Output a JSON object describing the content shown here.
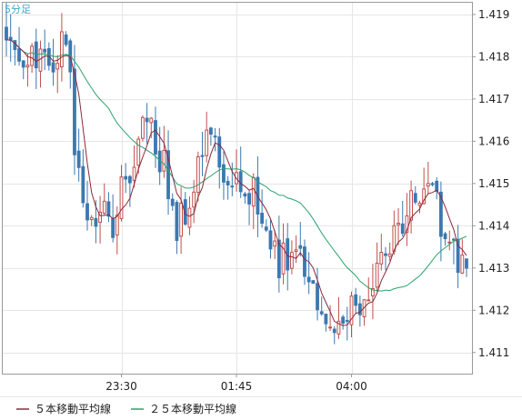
{
  "chart_data": {
    "type": "candlestick",
    "period_label": "5分足",
    "y_ticks": [
      1.411,
      1.412,
      1.413,
      1.414,
      1.415,
      1.416,
      1.417,
      1.418,
      1.419
    ],
    "ylim": [
      1.4105,
      1.4193
    ],
    "x_ticks": [
      {
        "label": "23:30",
        "index": 27
      },
      {
        "label": "01:45",
        "index": 54
      },
      {
        "label": "04:00",
        "index": 81
      }
    ],
    "candle_count": 109,
    "grid": true,
    "colors": {
      "up": "#c0504d",
      "down": "#3c78b0",
      "ma5": "#8a2a3a",
      "ma25": "#2aa36a",
      "grid": "#e6e6e6",
      "axis": "#9a9a9a"
    },
    "legend": [
      {
        "label": "５本移動平均線",
        "color": "#8a2a3a"
      },
      {
        "label": "２５本移動平均線",
        "color": "#2aa36a"
      }
    ],
    "anchors": [
      [
        0,
        1.4184
      ],
      [
        1,
        1.4185
      ],
      [
        4,
        1.4182
      ],
      [
        8,
        1.4179
      ],
      [
        10,
        1.4178
      ],
      [
        12,
        1.4182
      ],
      [
        14,
        1.4187
      ],
      [
        16,
        1.416
      ],
      [
        18,
        1.4148
      ],
      [
        20,
        1.4143
      ],
      [
        23,
        1.4142
      ],
      [
        25,
        1.4141
      ],
      [
        27,
        1.4149
      ],
      [
        29,
        1.4153
      ],
      [
        31,
        1.4158
      ],
      [
        33,
        1.4168
      ],
      [
        35,
        1.4158
      ],
      [
        37,
        1.4156
      ],
      [
        38,
        1.4146
      ],
      [
        40,
        1.4139
      ],
      [
        42,
        1.4143
      ],
      [
        44,
        1.4152
      ],
      [
        46,
        1.4158
      ],
      [
        48,
        1.416
      ],
      [
        50,
        1.4155
      ],
      [
        52,
        1.4153
      ],
      [
        54,
        1.4153
      ],
      [
        56,
        1.415
      ],
      [
        58,
        1.4148
      ],
      [
        60,
        1.414
      ],
      [
        62,
        1.4135
      ],
      [
        64,
        1.4132
      ],
      [
        66,
        1.4133
      ],
      [
        68,
        1.413
      ],
      [
        70,
        1.4131
      ],
      [
        72,
        1.4127
      ],
      [
        74,
        1.4122
      ],
      [
        76,
        1.4119
      ],
      [
        78,
        1.4118
      ],
      [
        80,
        1.412
      ],
      [
        82,
        1.4121
      ],
      [
        84,
        1.4124
      ],
      [
        86,
        1.4127
      ],
      [
        88,
        1.413
      ],
      [
        90,
        1.4134
      ],
      [
        92,
        1.414
      ],
      [
        94,
        1.4145
      ],
      [
        96,
        1.4148
      ],
      [
        98,
        1.415
      ],
      [
        100,
        1.4148
      ],
      [
        102,
        1.4142
      ],
      [
        104,
        1.4134
      ],
      [
        106,
        1.4133
      ],
      [
        108,
        1.4131
      ]
    ]
  }
}
